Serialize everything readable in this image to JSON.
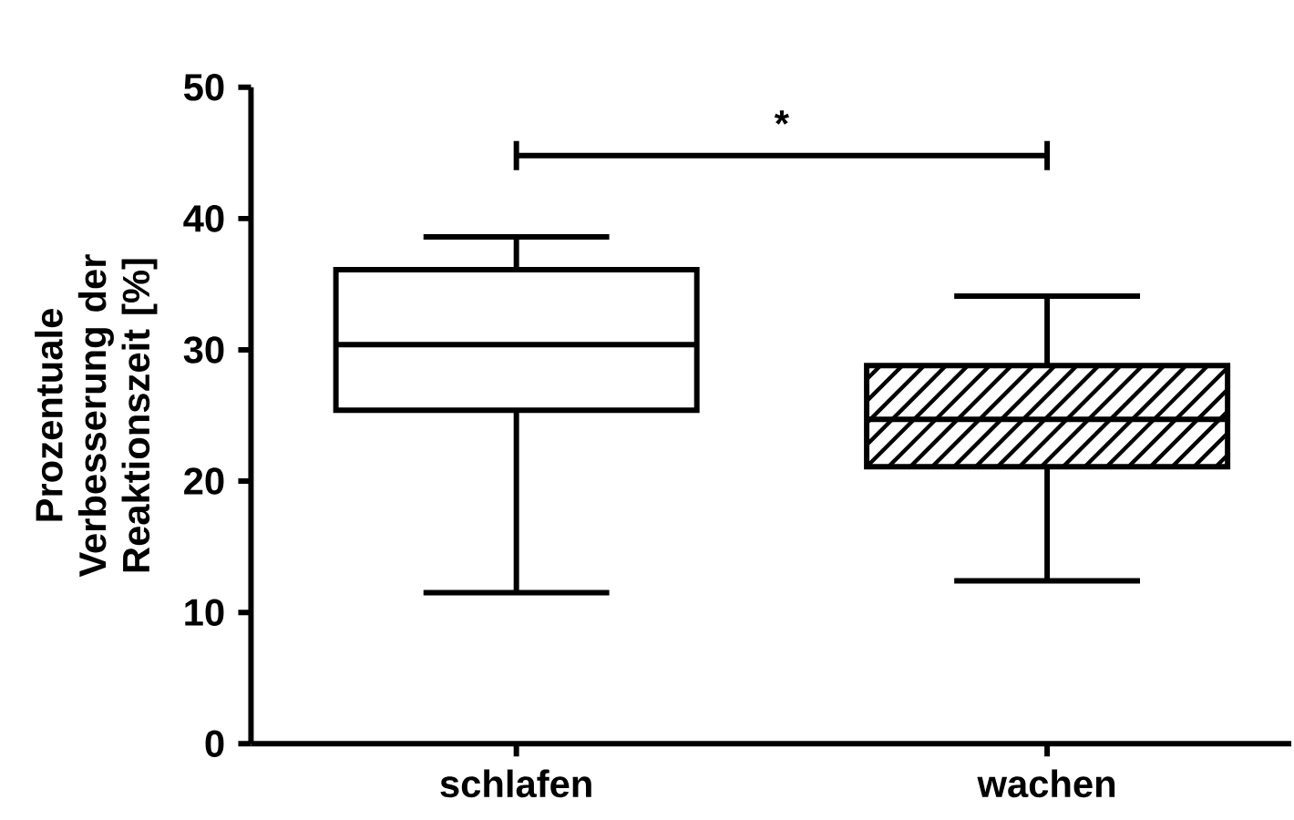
{
  "chart_data": {
    "type": "box",
    "ylabel": "Prozentuale Verbesserung der Reaktionszeit [%]",
    "categories": [
      "schlafen",
      "wachen"
    ],
    "boxes": [
      {
        "low": 11.5,
        "q1": 25.4,
        "median": 30.4,
        "q3": 36.1,
        "high": 38.6
      },
      {
        "low": 12.4,
        "q1": 21.1,
        "median": 24.7,
        "q3": 28.8,
        "high": 34.1
      }
    ],
    "color": "#000000",
    "ylim": [
      0,
      50
    ],
    "yticks": [
      0,
      10,
      20,
      30,
      40,
      50
    ],
    "annotations": [
      "*"
    ]
  }
}
